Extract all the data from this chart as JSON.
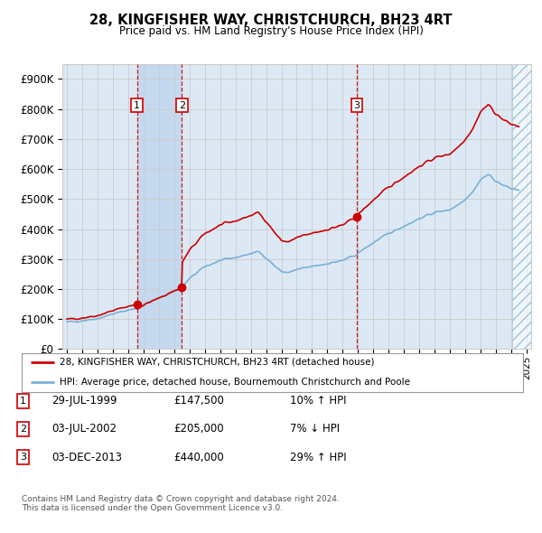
{
  "title": "28, KINGFISHER WAY, CHRISTCHURCH, BH23 4RT",
  "subtitle": "Price paid vs. HM Land Registry's House Price Index (HPI)",
  "ylim": [
    0,
    950000
  ],
  "yticks": [
    0,
    100000,
    200000,
    300000,
    400000,
    500000,
    600000,
    700000,
    800000,
    900000
  ],
  "ytick_labels": [
    "£0",
    "£100K",
    "£200K",
    "£300K",
    "£400K",
    "£500K",
    "£600K",
    "£700K",
    "£800K",
    "£900K"
  ],
  "xlim_start": 1994.7,
  "xlim_end": 2025.3,
  "sale_dates": [
    1999.57,
    2002.51,
    2013.92
  ],
  "sale_prices": [
    147500,
    205000,
    440000
  ],
  "sale_labels": [
    "1",
    "2",
    "3"
  ],
  "sale_info": [
    {
      "label": "1",
      "date": "29-JUL-1999",
      "price": "£147,500",
      "hpi": "10% ↑ HPI"
    },
    {
      "label": "2",
      "date": "03-JUL-2002",
      "price": "£205,000",
      "hpi": "7% ↓ HPI"
    },
    {
      "label": "3",
      "date": "03-DEC-2013",
      "price": "£440,000",
      "hpi": "29% ↑ HPI"
    }
  ],
  "hpi_line_color": "#7ab0d4",
  "sale_line_color": "#cc0000",
  "dashed_vline_color": "#cc0000",
  "grid_color": "#cccccc",
  "bg_color": "#dce9f5",
  "shade_between_color": "#c5d9ee",
  "legend_border_color": "#999999",
  "legend_label_property": "28, KINGFISHER WAY, CHRISTCHURCH, BH23 4RT (detached house)",
  "legend_label_hpi": "HPI: Average price, detached house, Bournemouth Christchurch and Poole",
  "footer_text": "Contains HM Land Registry data © Crown copyright and database right 2024.\nThis data is licensed under the Open Government Licence v3.0.",
  "hatch_color": "#7ab0d4",
  "hatch_pattern": "///",
  "hatch_start": 2024.08,
  "hatch_end": 2025.3
}
